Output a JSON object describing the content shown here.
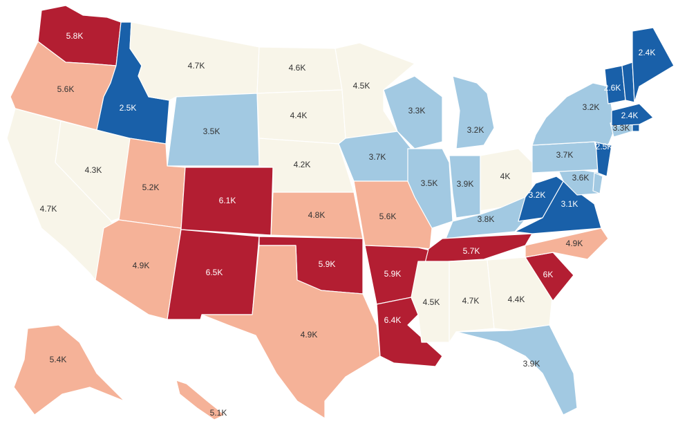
{
  "legend_colors": {
    "dark_blue": "#1960a9",
    "light_blue": "#a2c9e2",
    "cream": "#f8f5e9",
    "salmon": "#f5b298",
    "dark_red": "#b31e32"
  },
  "text_colors": {
    "on_dark": "#ffffff",
    "on_light": "#333333"
  },
  "states": [
    {
      "id": "WA",
      "value": "5.8K",
      "color": "#b31e32"
    },
    {
      "id": "OR",
      "value": "5.6K",
      "color": "#f5b298"
    },
    {
      "id": "CA",
      "value": "4.7K",
      "color": "#f8f5e9"
    },
    {
      "id": "NV",
      "value": "4.3K",
      "color": "#f8f5e9"
    },
    {
      "id": "ID",
      "value": "2.5K",
      "color": "#1960a9"
    },
    {
      "id": "MT",
      "value": "4.7K",
      "color": "#f8f5e9"
    },
    {
      "id": "WY",
      "value": "3.5K",
      "color": "#a2c9e2"
    },
    {
      "id": "UT",
      "value": "5.2K",
      "color": "#f5b298"
    },
    {
      "id": "AZ",
      "value": "4.9K",
      "color": "#f5b298"
    },
    {
      "id": "CO",
      "value": "6.1K",
      "color": "#b31e32"
    },
    {
      "id": "NM",
      "value": "6.5K",
      "color": "#b31e32"
    },
    {
      "id": "ND",
      "value": "4.6K",
      "color": "#f8f5e9"
    },
    {
      "id": "SD",
      "value": "4.4K",
      "color": "#f8f5e9"
    },
    {
      "id": "NE",
      "value": "4.2K",
      "color": "#f8f5e9"
    },
    {
      "id": "KS",
      "value": "4.8K",
      "color": "#f5b298"
    },
    {
      "id": "OK",
      "value": "5.9K",
      "color": "#b31e32"
    },
    {
      "id": "TX",
      "value": "4.9K",
      "color": "#f5b298"
    },
    {
      "id": "MN",
      "value": "4.5K",
      "color": "#f8f5e9"
    },
    {
      "id": "IA",
      "value": "3.7K",
      "color": "#a2c9e2"
    },
    {
      "id": "MO",
      "value": "5.6K",
      "color": "#f5b298"
    },
    {
      "id": "AR",
      "value": "5.9K",
      "color": "#b31e32"
    },
    {
      "id": "LA",
      "value": "6.4K",
      "color": "#b31e32"
    },
    {
      "id": "WI",
      "value": "3.3K",
      "color": "#a2c9e2"
    },
    {
      "id": "IL",
      "value": "3.5K",
      "color": "#a2c9e2"
    },
    {
      "id": "MI",
      "value": "3.2K",
      "color": "#a2c9e2"
    },
    {
      "id": "IN",
      "value": "3.9K",
      "color": "#a2c9e2"
    },
    {
      "id": "OH",
      "value": "4K",
      "color": "#f8f5e9"
    },
    {
      "id": "KY",
      "value": "3.8K",
      "color": "#a2c9e2"
    },
    {
      "id": "TN",
      "value": "5.7K",
      "color": "#b31e32"
    },
    {
      "id": "MS",
      "value": "4.5K",
      "color": "#f8f5e9"
    },
    {
      "id": "AL",
      "value": "4.7K",
      "color": "#f8f5e9"
    },
    {
      "id": "GA",
      "value": "4.4K",
      "color": "#f8f5e9"
    },
    {
      "id": "FL",
      "value": "3.9K",
      "color": "#a2c9e2"
    },
    {
      "id": "SC",
      "value": "6K",
      "color": "#b31e32"
    },
    {
      "id": "NC",
      "value": "4.9K",
      "color": "#f5b298"
    },
    {
      "id": "VA",
      "value": "3.1K",
      "color": "#1960a9"
    },
    {
      "id": "WV",
      "value": "3.2K",
      "color": "#1960a9"
    },
    {
      "id": "MD",
      "value": "3.6K",
      "color": "#a2c9e2"
    },
    {
      "id": "DE",
      "value": "",
      "color": "#a2c9e2"
    },
    {
      "id": "PA",
      "value": "3.7K",
      "color": "#a2c9e2"
    },
    {
      "id": "NJ",
      "value": "2.5K",
      "color": "#1960a9"
    },
    {
      "id": "NY",
      "value": "3.2K",
      "color": "#a2c9e2"
    },
    {
      "id": "CT",
      "value": "3.3K",
      "color": "#a2c9e2"
    },
    {
      "id": "RI",
      "value": "",
      "color": "#1960a9"
    },
    {
      "id": "MA",
      "value": "2.4K",
      "color": "#1960a9"
    },
    {
      "id": "VT",
      "value": "2.6K",
      "color": "#1960a9"
    },
    {
      "id": "NH",
      "value": "",
      "color": "#1960a9"
    },
    {
      "id": "ME",
      "value": "2.4K",
      "color": "#1960a9"
    },
    {
      "id": "AK",
      "value": "5.4K",
      "color": "#f5b298"
    },
    {
      "id": "HI",
      "value": "5.1K",
      "color": "#f5b298"
    }
  ]
}
